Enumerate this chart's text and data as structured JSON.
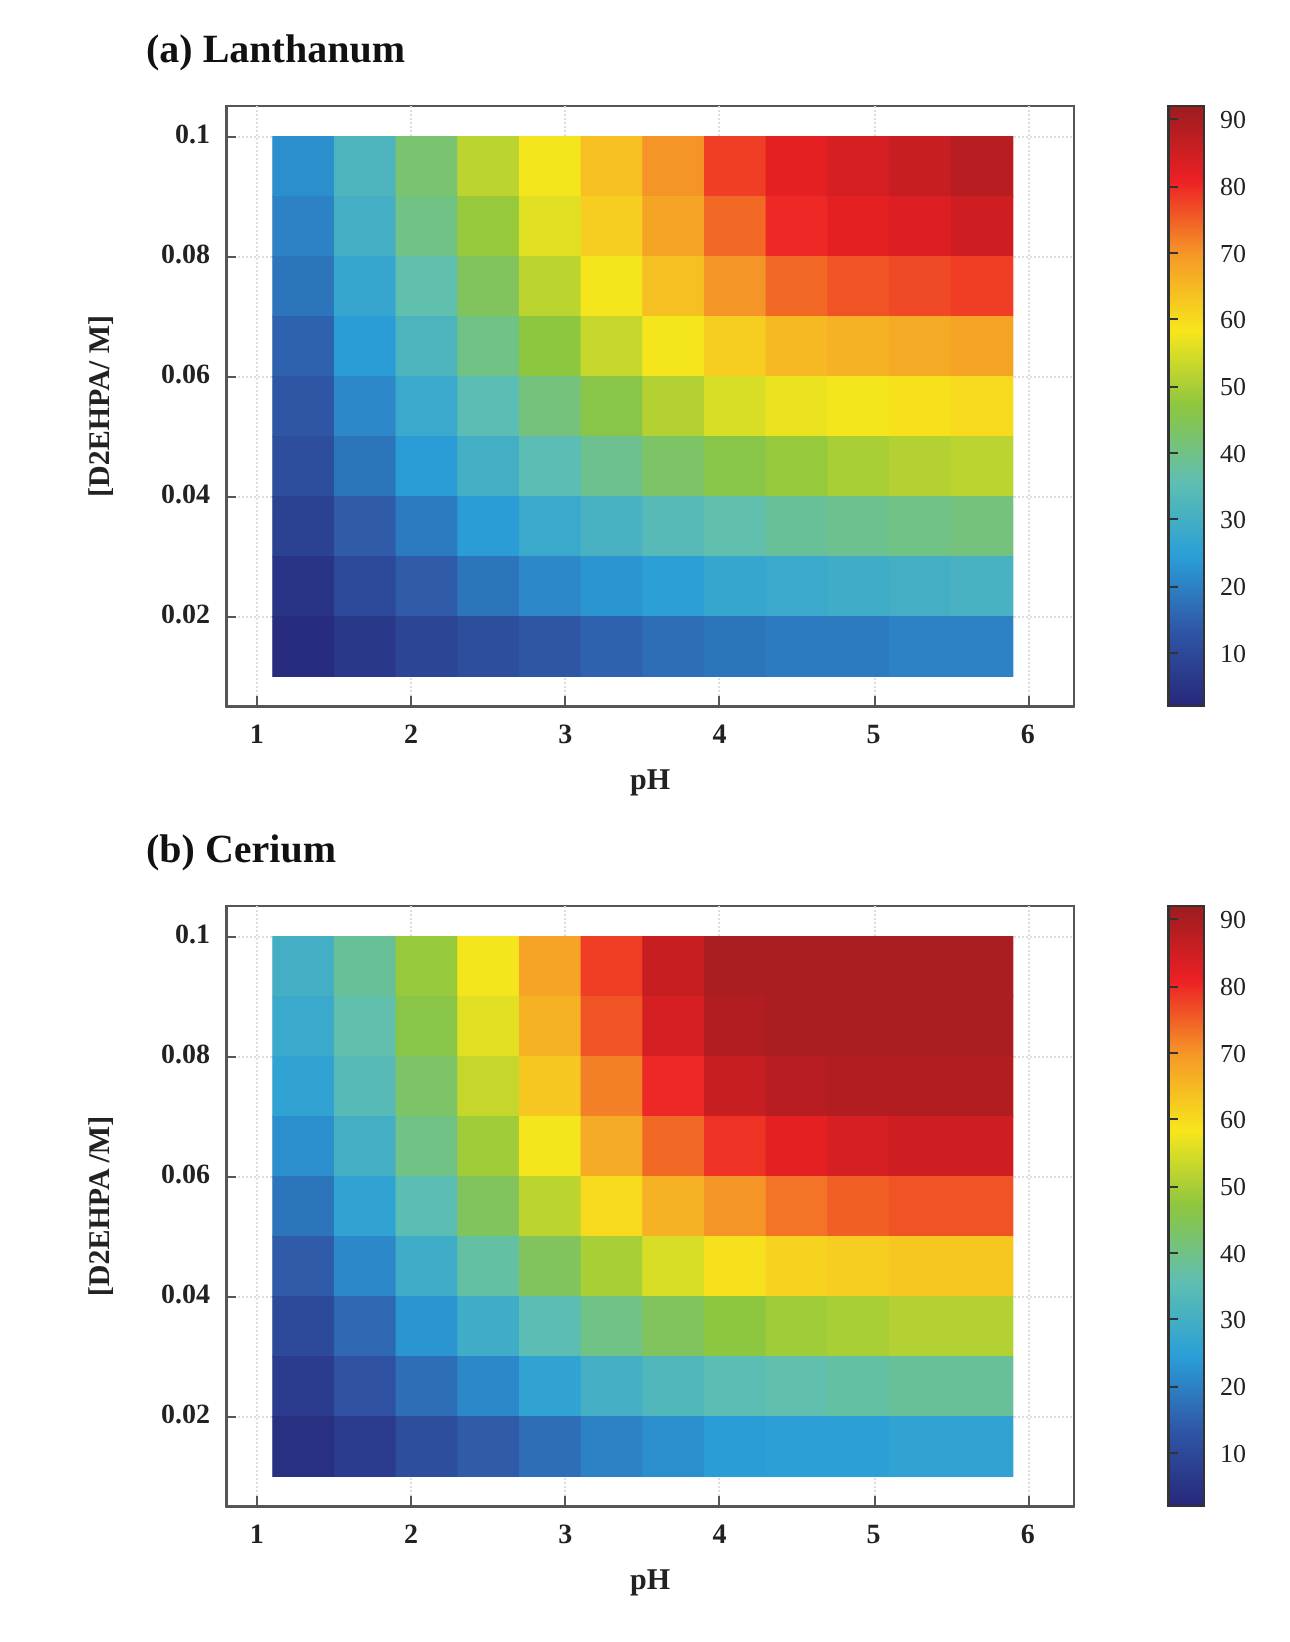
{
  "chart_data": [
    {
      "type": "heatmap",
      "title": "(a) Lanthanum",
      "xlabel": "pH",
      "ylabel": "[D2EHPA/ M]",
      "x": [
        1.3,
        1.7,
        2.1,
        2.5,
        2.9,
        3.3,
        3.7,
        4.1,
        4.5,
        4.9,
        5.3,
        5.7
      ],
      "y": [
        0.095,
        0.085,
        0.075,
        0.065,
        0.055,
        0.045,
        0.035,
        0.025,
        0.015
      ],
      "cells": [
        [
          22,
          32,
          42,
          52,
          58,
          64,
          70,
          78,
          82,
          84,
          86,
          88
        ],
        [
          20,
          30,
          40,
          48,
          56,
          62,
          68,
          74,
          80,
          82,
          83,
          85
        ],
        [
          18,
          27,
          36,
          44,
          52,
          58,
          64,
          70,
          74,
          76,
          77,
          78
        ],
        [
          15,
          24,
          32,
          40,
          47,
          53,
          58,
          62,
          65,
          66,
          67,
          68
        ],
        [
          13,
          21,
          28,
          35,
          41,
          46,
          51,
          55,
          57,
          58,
          59,
          60
        ],
        [
          11,
          18,
          24,
          30,
          35,
          39,
          43,
          46,
          48,
          50,
          51,
          52
        ],
        [
          8,
          14,
          19,
          24,
          28,
          31,
          34,
          36,
          38,
          39,
          40,
          41
        ],
        [
          5,
          10,
          14,
          18,
          21,
          23,
          25,
          27,
          28,
          29,
          30,
          31
        ],
        [
          3,
          6,
          9,
          11,
          13,
          15,
          17,
          18,
          19,
          19,
          20,
          20
        ]
      ],
      "xlim": [
        0.8,
        6.3
      ],
      "xticks": [
        1,
        2,
        3,
        4,
        5,
        6
      ],
      "ylim": [
        0.005,
        0.105
      ],
      "yticks": [
        0.02,
        0.04,
        0.06,
        0.08,
        0.1
      ],
      "clim": [
        2,
        92
      ],
      "cticks": [
        10,
        20,
        30,
        40,
        50,
        60,
        70,
        80,
        90
      ],
      "grid": true
    },
    {
      "type": "heatmap",
      "title": "(b) Cerium",
      "xlabel": "pH",
      "ylabel": "[D2EHPA /M]",
      "x": [
        1.3,
        1.7,
        2.1,
        2.5,
        2.9,
        3.3,
        3.7,
        4.1,
        4.5,
        4.9,
        5.3,
        5.7
      ],
      "y": [
        0.095,
        0.085,
        0.075,
        0.065,
        0.055,
        0.045,
        0.035,
        0.025,
        0.015
      ],
      "cells": [
        [
          30,
          38,
          48,
          58,
          68,
          78,
          86,
          90,
          90,
          90,
          90,
          90
        ],
        [
          28,
          36,
          46,
          56,
          66,
          76,
          84,
          89,
          90,
          90,
          90,
          90
        ],
        [
          26,
          34,
          43,
          53,
          63,
          72,
          80,
          86,
          88,
          89,
          89,
          89
        ],
        [
          22,
          30,
          40,
          49,
          58,
          67,
          74,
          79,
          82,
          84,
          85,
          85
        ],
        [
          18,
          26,
          35,
          44,
          52,
          60,
          66,
          70,
          73,
          75,
          76,
          76
        ],
        [
          14,
          21,
          29,
          37,
          44,
          50,
          55,
          59,
          61,
          62,
          63,
          63
        ],
        [
          10,
          16,
          23,
          29,
          35,
          40,
          44,
          47,
          49,
          50,
          51,
          51
        ],
        [
          7,
          12,
          17,
          21,
          26,
          30,
          33,
          35,
          36,
          37,
          38,
          38
        ],
        [
          4,
          7,
          11,
          14,
          17,
          20,
          22,
          24,
          25,
          25,
          26,
          26
        ]
      ],
      "xlim": [
        0.8,
        6.3
      ],
      "xticks": [
        1,
        2,
        3,
        4,
        5,
        6
      ],
      "ylim": [
        0.005,
        0.105
      ],
      "yticks": [
        0.02,
        0.04,
        0.06,
        0.08,
        0.1
      ],
      "clim": [
        2,
        92
      ],
      "cticks": [
        10,
        20,
        30,
        40,
        50,
        60,
        70,
        80,
        90
      ],
      "grid": true
    }
  ]
}
